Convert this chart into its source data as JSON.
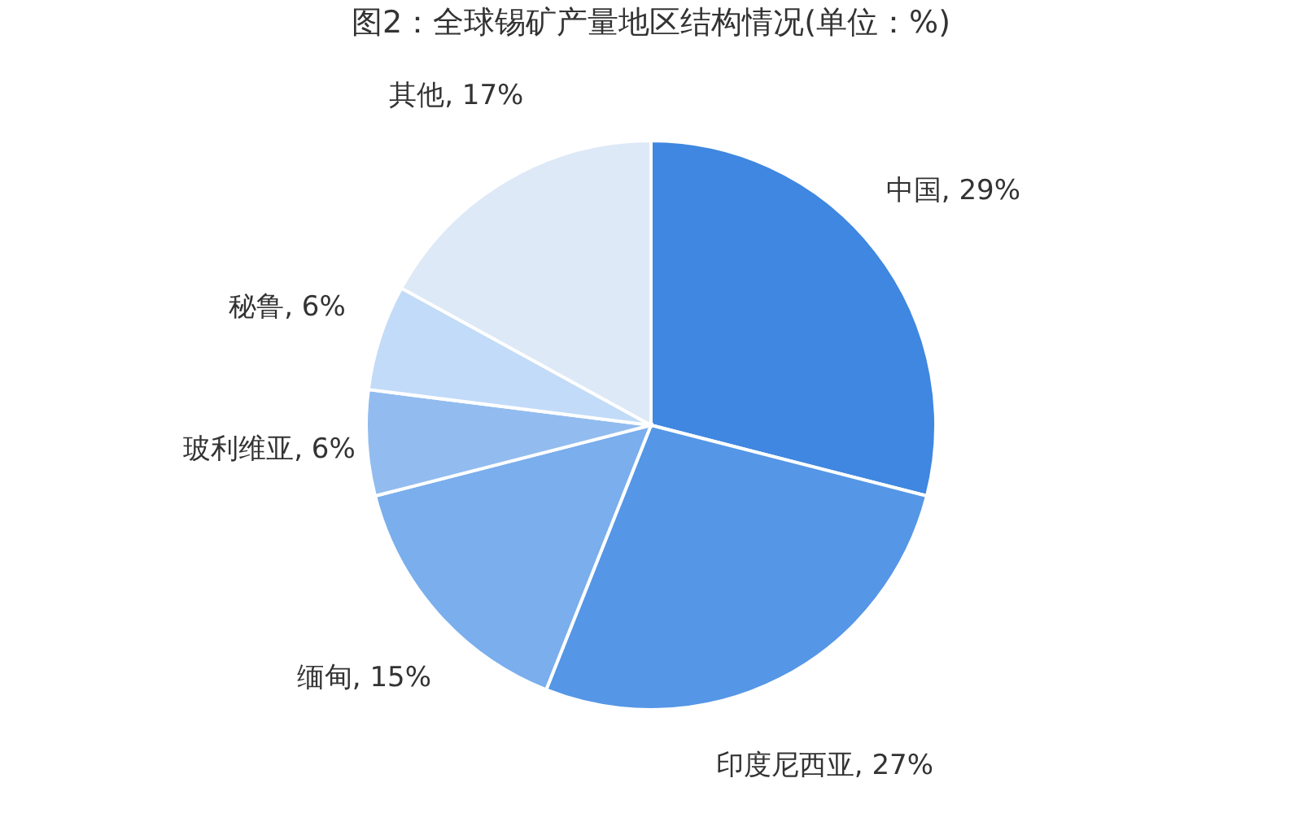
{
  "chart_data": {
    "type": "pie",
    "title": "图2：全球锡矿产量地区结构情况(单位：%)",
    "categories": [
      "中国",
      "印度尼西亚",
      "缅甸",
      "玻利维亚",
      "秘鲁",
      "其他"
    ],
    "values": [
      29,
      27,
      15,
      6,
      6,
      17
    ],
    "value_labels": [
      "29%",
      "27%",
      "15%",
      "6%",
      "6%",
      "17%"
    ],
    "colors": [
      "#3f87e0",
      "#5596e6",
      "#7aaeec",
      "#92bcef",
      "#c2dbf8",
      "#dde9f7"
    ],
    "legend": false
  }
}
